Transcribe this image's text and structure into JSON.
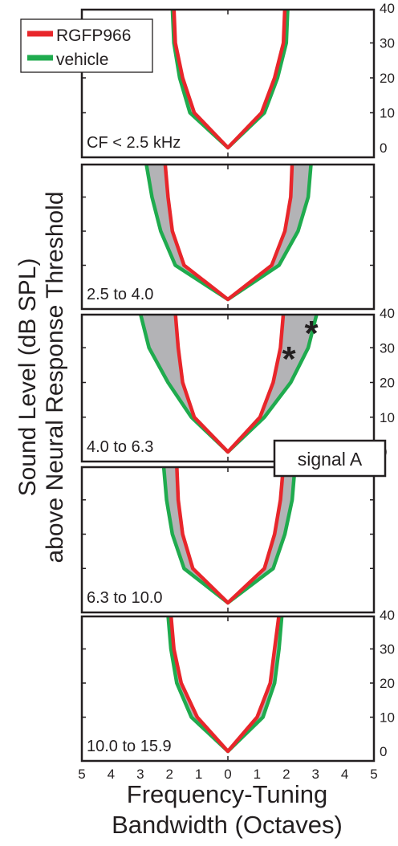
{
  "colors": {
    "rgfp966": "#e8262b",
    "vehicle": "#1fab4e",
    "shade": "#b3b3b6",
    "frame": "#231f20"
  },
  "legend": {
    "items": [
      {
        "label": "RGFP966",
        "color": "#e8262b"
      },
      {
        "label": "vehicle",
        "color": "#1fab4e"
      }
    ]
  },
  "annotation": {
    "label": "signal A"
  },
  "significance_markers": [
    "*",
    "*"
  ],
  "chart_data": [
    {
      "type": "line",
      "title": "CF < 2.5 kHz",
      "xlabel": "Frequency-Tuning Bandwidth (Octaves)",
      "ylabel": "Sound Level (dB SPL) above Neural Response Threshold",
      "xlim": [
        -5,
        5
      ],
      "ylim": [
        0,
        40
      ],
      "xticks": [
        5,
        4,
        3,
        2,
        1,
        0,
        1,
        2,
        3,
        4,
        5
      ],
      "yticks": [
        0,
        10,
        20,
        30,
        40
      ],
      "levels": [
        0,
        10,
        20,
        30,
        40
      ],
      "series": [
        {
          "name": "RGFP966",
          "left": [
            0,
            -1.15,
            -1.55,
            -1.8,
            -1.85
          ],
          "right": [
            0,
            1.15,
            1.6,
            1.9,
            1.95
          ]
        },
        {
          "name": "vehicle",
          "left": [
            0,
            -1.3,
            -1.65,
            -1.85,
            -1.9
          ],
          "right": [
            0,
            1.25,
            1.7,
            2.0,
            2.05
          ]
        }
      ]
    },
    {
      "type": "line",
      "title": "2.5 to 4.0",
      "xlim": [
        -5,
        5
      ],
      "ylim": [
        0,
        40
      ],
      "levels": [
        0,
        10,
        20,
        30,
        40
      ],
      "series": [
        {
          "name": "RGFP966",
          "left": [
            0,
            -1.5,
            -1.9,
            -2.05,
            -2.15
          ],
          "right": [
            0,
            1.5,
            1.95,
            2.15,
            2.2
          ]
        },
        {
          "name": "vehicle",
          "left": [
            0,
            -1.8,
            -2.3,
            -2.6,
            -2.8
          ],
          "right": [
            0,
            1.75,
            2.4,
            2.75,
            2.85
          ]
        }
      ]
    },
    {
      "type": "line",
      "title": "4.0 to 6.3",
      "xlim": [
        -5,
        5
      ],
      "ylim": [
        0,
        40
      ],
      "levels": [
        0,
        10,
        20,
        30,
        40
      ],
      "series": [
        {
          "name": "RGFP966",
          "left": [
            0,
            -1.15,
            -1.55,
            -1.7,
            -1.8
          ],
          "right": [
            0,
            1.1,
            1.55,
            1.8,
            1.9
          ]
        },
        {
          "name": "vehicle",
          "left": [
            0,
            -1.25,
            -2.05,
            -2.7,
            -3.0
          ],
          "right": [
            0,
            1.25,
            2.15,
            2.75,
            3.05
          ]
        }
      ]
    },
    {
      "type": "line",
      "title": "6.3 to 10.0",
      "xlim": [
        -5,
        5
      ],
      "ylim": [
        0,
        40
      ],
      "levels": [
        0,
        10,
        20,
        30,
        40
      ],
      "series": [
        {
          "name": "RGFP966",
          "left": [
            0,
            -1.2,
            -1.55,
            -1.7,
            -1.75
          ],
          "right": [
            0,
            1.25,
            1.6,
            1.8,
            1.9
          ]
        },
        {
          "name": "vehicle",
          "left": [
            0,
            -1.5,
            -1.9,
            -2.1,
            -2.2
          ],
          "right": [
            0,
            1.55,
            1.95,
            2.2,
            2.3
          ]
        }
      ]
    },
    {
      "type": "line",
      "title": "10.0 to 15.9",
      "xlim": [
        -5,
        5
      ],
      "ylim": [
        0,
        40
      ],
      "levels": [
        0,
        10,
        20,
        30,
        40
      ],
      "series": [
        {
          "name": "RGFP966",
          "left": [
            0,
            -1.05,
            -1.6,
            -1.85,
            -1.95
          ],
          "right": [
            0,
            1.0,
            1.45,
            1.6,
            1.75
          ]
        },
        {
          "name": "vehicle",
          "left": [
            0,
            -1.25,
            -1.75,
            -1.95,
            -2.05
          ],
          "right": [
            0,
            1.2,
            1.6,
            1.75,
            1.85
          ]
        }
      ]
    }
  ]
}
